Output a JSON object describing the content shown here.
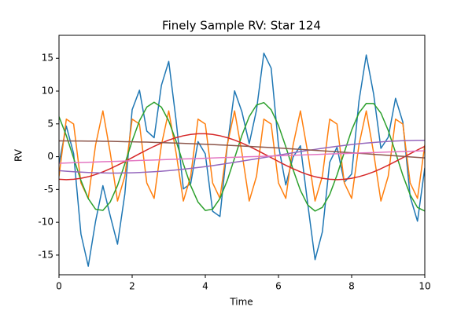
{
  "chart_data": {
    "type": "line",
    "title": "Finely Sample RV: Star 124",
    "xlabel": "Time",
    "ylabel": "RV",
    "x": [
      0,
      0.2,
      0.4,
      0.6,
      0.8,
      1,
      1.2,
      1.4,
      1.6,
      1.8,
      2,
      2.2,
      2.4,
      2.6,
      2.8,
      3,
      3.2,
      3.4,
      3.6,
      3.8,
      4,
      4.2,
      4.4,
      4.6,
      4.8,
      5,
      5.2,
      5.4,
      5.6,
      5.8,
      6,
      6.2,
      6.4,
      6.6,
      6.8,
      7,
      7.2,
      7.4,
      7.6,
      7.8,
      8,
      8.2,
      8.4,
      8.6,
      8.8,
      9,
      9.2,
      9.4,
      9.6,
      9.8,
      10
    ],
    "series": [
      {
        "color": "#1f77b4",
        "values": [
          -1.06,
          4.67,
          0.47,
          -11.79,
          -16.7,
          -9.84,
          -4.42,
          -9.0,
          -13.34,
          -5.67,
          7.16,
          10.13,
          3.91,
          2.89,
          10.88,
          14.52,
          5.58,
          -4.91,
          -4.11,
          2.3,
          0.41,
          -8.32,
          -9.12,
          1.65,
          10.04,
          6.85,
          1.98,
          7.14,
          15.78,
          13.5,
          1.71,
          -4.31,
          -0.04,
          1.66,
          -7.19,
          -15.7,
          -11.46,
          -0.85,
          1.44,
          -3.9,
          -2.65,
          8.46,
          15.5,
          9.59,
          1.27,
          2.96,
          8.9,
          5.26,
          -6.1,
          -9.83,
          -1.71
        ]
      },
      {
        "color": "#ff7f0e",
        "values": [
          -2.98,
          5.72,
          4.97,
          -4.0,
          -6.36,
          1.79,
          6.98,
          0.63,
          -6.76,
          -2.98,
          5.72,
          4.97,
          -4.0,
          -6.36,
          1.79,
          6.98,
          0.63,
          -6.76,
          -2.98,
          5.72,
          4.97,
          -4.0,
          -6.36,
          1.79,
          6.98,
          0.63,
          -6.76,
          -2.98,
          5.72,
          4.97,
          -4.0,
          -6.36,
          1.79,
          6.98,
          0.63,
          -6.76,
          -2.98,
          5.72,
          4.97,
          -4.0,
          -6.36,
          1.79,
          6.98,
          0.63,
          -6.76,
          -2.98,
          5.72,
          4.97,
          -4.0,
          -6.36,
          1.79
        ]
      },
      {
        "color": "#2ca02c",
        "values": [
          6.1,
          3.23,
          -0.22,
          -3.63,
          -6.39,
          -8.01,
          -8.19,
          -6.91,
          -4.4,
          -1.1,
          2.4,
          5.47,
          7.56,
          8.3,
          7.55,
          5.46,
          2.39,
          -1.11,
          -4.41,
          -6.92,
          -8.2,
          -8.0,
          -6.38,
          -3.62,
          -0.21,
          3.24,
          6.11,
          7.88,
          8.25,
          7.15,
          4.76,
          1.52,
          -1.98,
          -5.14,
          -7.37,
          -8.29,
          -7.73,
          -5.78,
          -2.8,
          0.68,
          4.04,
          6.67,
          8.12,
          8.11,
          6.65,
          4.0,
          0.64,
          -2.84,
          -5.81,
          -7.74,
          -8.29
        ]
      },
      {
        "color": "#d62728",
        "values": [
          -3.45,
          -3.5,
          -3.45,
          -3.3,
          -3.06,
          -2.72,
          -2.31,
          -1.83,
          -1.3,
          -0.74,
          -0.15,
          0.45,
          1.03,
          1.58,
          2.08,
          2.53,
          2.9,
          3.19,
          3.39,
          3.49,
          3.49,
          3.39,
          3.19,
          2.9,
          2.53,
          2.08,
          1.57,
          1.02,
          0.44,
          -0.15,
          -0.74,
          -1.31,
          -1.84,
          -2.31,
          -2.73,
          -3.06,
          -3.3,
          -3.45,
          -3.5,
          -3.45,
          -3.3,
          -3.05,
          -2.72,
          -2.31,
          -1.83,
          -1.3,
          -0.73,
          -0.15,
          0.45,
          1.03,
          1.58
        ]
      },
      {
        "color": "#9467bd",
        "values": [
          -2.13,
          -2.22,
          -2.3,
          -2.36,
          -2.42,
          -2.46,
          -2.48,
          -2.5,
          -2.5,
          -2.48,
          -2.46,
          -2.42,
          -2.36,
          -2.3,
          -2.22,
          -2.13,
          -2.02,
          -1.91,
          -1.78,
          -1.65,
          -1.51,
          -1.36,
          -1.2,
          -1.03,
          -0.86,
          -0.68,
          -0.5,
          -0.32,
          -0.14,
          0.05,
          0.23,
          0.41,
          0.59,
          0.77,
          0.95,
          1.11,
          1.28,
          1.43,
          1.58,
          1.72,
          1.85,
          1.97,
          2.08,
          2.17,
          2.26,
          2.33,
          2.39,
          2.44,
          2.47,
          2.49,
          2.5
        ]
      },
      {
        "color": "#8c564b",
        "values": [
          2.4,
          2.4,
          2.39,
          2.39,
          2.38,
          2.37,
          2.35,
          2.34,
          2.32,
          2.29,
          2.27,
          2.24,
          2.22,
          2.18,
          2.15,
          2.11,
          2.07,
          2.03,
          1.99,
          1.94,
          1.9,
          1.85,
          1.79,
          1.74,
          1.69,
          1.63,
          1.57,
          1.51,
          1.45,
          1.38,
          1.32,
          1.25,
          1.18,
          1.11,
          1.04,
          0.97,
          0.9,
          0.82,
          0.75,
          0.67,
          0.6,
          0.52,
          0.44,
          0.36,
          0.28,
          0.2,
          0.13,
          0.05,
          -0.03,
          -0.11,
          -0.19
        ]
      },
      {
        "color": "#e377c2",
        "values": [
          -1.0,
          -0.96,
          -0.92,
          -0.89,
          -0.85,
          -0.81,
          -0.77,
          -0.73,
          -0.7,
          -0.66,
          -0.62,
          -0.58,
          -0.54,
          -0.51,
          -0.47,
          -0.43,
          -0.39,
          -0.35,
          -0.32,
          -0.28,
          -0.24,
          -0.2,
          -0.16,
          -0.13,
          -0.09,
          -0.05,
          -0.01,
          0.03,
          0.06,
          0.1,
          0.14,
          0.18,
          0.22,
          0.25,
          0.29,
          0.33,
          0.37,
          0.41,
          0.44,
          0.48,
          0.52,
          0.56,
          0.6,
          0.63,
          0.67,
          0.71,
          0.75,
          0.79,
          0.82,
          0.86,
          0.9
        ]
      }
    ],
    "xlim": [
      0,
      10
    ],
    "xticks": [
      0,
      2,
      4,
      6,
      8,
      10
    ],
    "ylim": [
      -18,
      18.5
    ],
    "yticks": [
      -15,
      -10,
      -5,
      0,
      5,
      10,
      15
    ],
    "grid": false
  }
}
